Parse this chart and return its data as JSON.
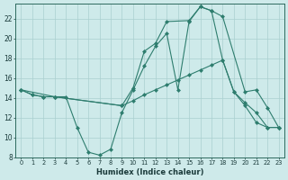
{
  "bg_color": "#ceeaea",
  "line_color": "#2e7d6e",
  "grid_color": "#aacfcf",
  "xlabel": "Humidex (Indice chaleur)",
  "xlim": [
    -0.5,
    23.5
  ],
  "ylim": [
    8,
    23.5
  ],
  "yticks": [
    8,
    10,
    12,
    14,
    16,
    18,
    20,
    22
  ],
  "xticks": [
    0,
    1,
    2,
    3,
    4,
    5,
    6,
    7,
    8,
    9,
    10,
    11,
    12,
    13,
    14,
    15,
    16,
    17,
    18,
    19,
    20,
    21,
    22,
    23
  ],
  "curve1_x": [
    0,
    1,
    2,
    3,
    4,
    5,
    6,
    7,
    8,
    9,
    10,
    11,
    12,
    13,
    14,
    15,
    16,
    17,
    18,
    19,
    20,
    21,
    22,
    23
  ],
  "curve1_y": [
    14.8,
    14.3,
    14.1,
    14.1,
    14.1,
    11.0,
    8.5,
    8.2,
    8.8,
    12.5,
    14.8,
    17.2,
    19.2,
    20.5,
    14.8,
    21.7,
    23.2,
    22.8,
    17.8,
    14.6,
    13.2,
    11.5,
    11.0,
    11.0
  ],
  "curve2_x": [
    0,
    1,
    2,
    3,
    9,
    10,
    11,
    12,
    13,
    14,
    15,
    16,
    17,
    18,
    19,
    20,
    21,
    22,
    23
  ],
  "curve2_y": [
    14.8,
    14.3,
    14.1,
    14.1,
    13.2,
    13.7,
    14.3,
    14.8,
    15.3,
    15.8,
    16.3,
    16.8,
    17.3,
    17.8,
    14.6,
    13.5,
    12.5,
    11.0,
    11.0
  ],
  "curve3_x": [
    0,
    3,
    9,
    10,
    11,
    12,
    13,
    15,
    16,
    17,
    18,
    20,
    21,
    22,
    23
  ],
  "curve3_y": [
    14.8,
    14.1,
    13.2,
    15.0,
    18.7,
    19.5,
    21.7,
    21.8,
    23.2,
    22.8,
    22.2,
    14.6,
    14.8,
    13.0,
    11.0
  ],
  "markersize": 2.5
}
